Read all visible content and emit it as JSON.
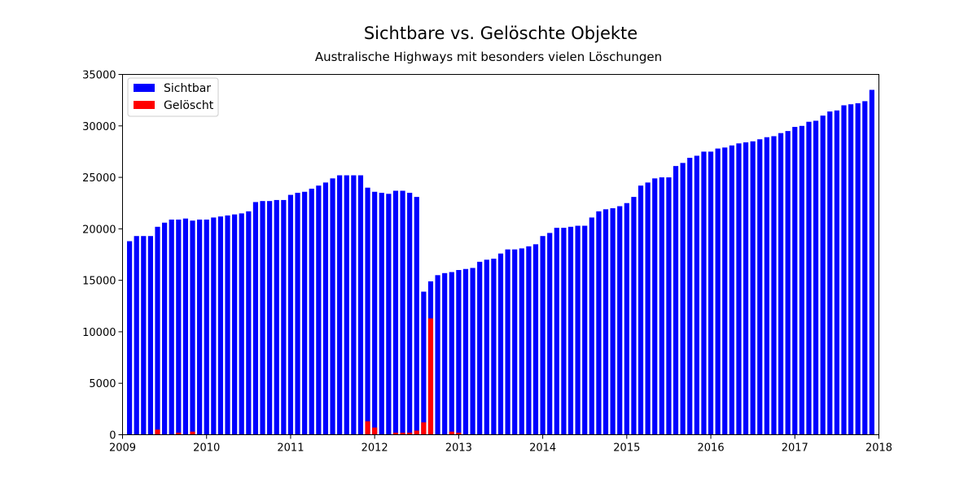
{
  "chart_data": {
    "type": "bar",
    "title": "Sichtbare vs. Gelöschte Objekte",
    "subtitle": "Australische Highways mit besonders vielen Löschungen",
    "xlabel": "",
    "ylabel": "",
    "x_range": [
      "2009-01",
      "2018-01"
    ],
    "xticks": [
      "2009",
      "2010",
      "2011",
      "2012",
      "2013",
      "2014",
      "2015",
      "2016",
      "2017",
      "2018"
    ],
    "ylim": [
      0,
      35000
    ],
    "yticks": [
      "0",
      "5000",
      "10000",
      "15000",
      "20000",
      "25000",
      "30000",
      "35000"
    ],
    "grid": false,
    "legend_position": "top-left",
    "colors": {
      "visible": "#0000ff",
      "deleted": "#ff0000"
    },
    "series": [
      {
        "name": "Sichtbar",
        "start": "2009-02",
        "values": [
          18800,
          19300,
          19300,
          19300,
          20200,
          20600,
          20900,
          20900,
          21000,
          20800,
          20900,
          20900,
          21100,
          21200,
          21300,
          21400,
          21500,
          21700,
          22600,
          22700,
          22700,
          22800,
          22800,
          23300,
          23500,
          23600,
          23900,
          24200,
          24500,
          24900,
          25200,
          25200,
          25200,
          25200,
          24000,
          23600,
          23500,
          23400,
          23700,
          23700,
          23500,
          23100,
          13900,
          14900,
          15500,
          15700,
          15800,
          16000,
          16100,
          16200,
          16800,
          17000,
          17100,
          17600,
          18000,
          18000,
          18100,
          18300,
          18500,
          19300,
          19600,
          20100,
          20100,
          20200,
          20300,
          20300,
          21100,
          21700,
          21900,
          22000,
          22200,
          22500,
          23100,
          24200,
          24500,
          24900,
          25000,
          25000,
          26100,
          26400,
          26900,
          27100,
          27500,
          27500,
          27800,
          27900,
          28100,
          28300,
          28400,
          28500,
          28700,
          28900,
          29000,
          29300,
          29500,
          29900,
          30000,
          30400,
          30500,
          31000,
          31400,
          31500,
          32000,
          32100,
          32200,
          32400,
          33500
        ]
      },
      {
        "name": "Gelöscht",
        "start": "2009-02",
        "values": [
          0,
          0,
          0,
          0,
          500,
          0,
          0,
          200,
          0,
          300,
          0,
          0,
          0,
          0,
          0,
          0,
          0,
          0,
          0,
          0,
          0,
          0,
          0,
          0,
          0,
          0,
          0,
          0,
          0,
          0,
          0,
          0,
          0,
          0,
          1300,
          700,
          0,
          0,
          200,
          200,
          200,
          400,
          1200,
          11300,
          0,
          0,
          300,
          200,
          0,
          0,
          0,
          0,
          0,
          0,
          0,
          0,
          0,
          0,
          0,
          0,
          0,
          0,
          0,
          0,
          0,
          0,
          0,
          0,
          0,
          0,
          0,
          0,
          0,
          0,
          0,
          0,
          0,
          0,
          0,
          0,
          0,
          0,
          0,
          0,
          0,
          0,
          0,
          0,
          0,
          0,
          0,
          0,
          0,
          0,
          0,
          0,
          0,
          0,
          0,
          0,
          0,
          0,
          0,
          0,
          0,
          0,
          0
        ]
      }
    ]
  }
}
